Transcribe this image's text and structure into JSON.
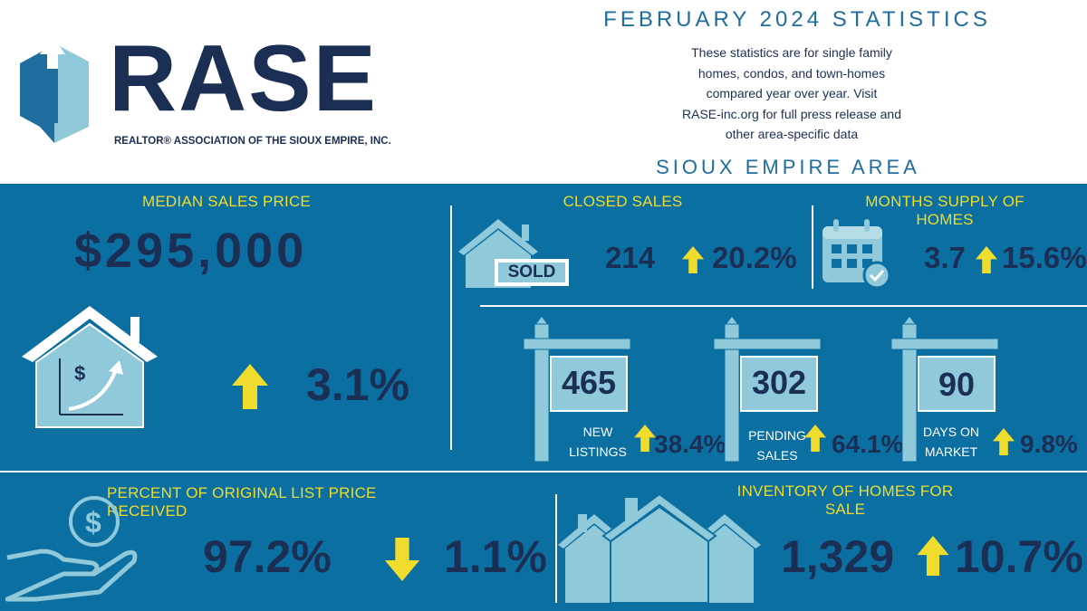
{
  "brand": {
    "logo_text": "RASE",
    "tagline": "REALTOR® ASSOCIATION OF THE SIOUX EMPIRE, INC."
  },
  "header": {
    "title": "FEBRUARY 2024 STATISTICS",
    "description_lines": [
      "These statistics are for single family",
      "homes, condos, and town-homes",
      "compared year over year. Visit",
      "RASE-inc.org for full press release and",
      "other area-specific data"
    ],
    "area": "SIOUX EMPIRE AREA"
  },
  "median": {
    "label": "MEDIAN SALES PRICE",
    "value": "$295,000",
    "change": "3.1%",
    "direction": "up"
  },
  "closed": {
    "label": "CLOSED SALES",
    "value": "214",
    "change": "20.2%",
    "direction": "up",
    "sold_sign": "SOLD"
  },
  "supply": {
    "label": "MONTHS SUPPLY OF HOMES",
    "value": "3.7",
    "change": "15.6%",
    "direction": "up"
  },
  "new_listings": {
    "value": "465",
    "caption_1": "NEW",
    "caption_2": "LISTINGS",
    "change": "38.4%",
    "direction": "up"
  },
  "pending": {
    "value": "302",
    "caption_1": "PENDING",
    "caption_2": "SALES",
    "change": "64.1%",
    "direction": "up"
  },
  "dom": {
    "value": "90",
    "caption_1": "DAYS ON",
    "caption_2": "MARKET",
    "change": "9.8%",
    "direction": "up"
  },
  "list_price": {
    "label": "PERCENT OF ORIGINAL LIST PRICE RECEIVED",
    "value": "97.2%",
    "change": "1.1%",
    "direction": "down"
  },
  "inventory": {
    "label": "INVENTORY OF HOMES FOR SALE",
    "value": "1,329",
    "change": "10.7%",
    "direction": "up"
  },
  "colors": {
    "panel": "#0c6fa2",
    "navy": "#1b2f55",
    "accent": "#f0dc2c",
    "light": "#8fc9da",
    "logo_blue": "#1f6d9e"
  },
  "icons": [
    "logo-icon",
    "house-chart-icon",
    "sold-house-icon",
    "calendar-icon",
    "sign-post-icon",
    "money-hand-icon",
    "houses-icon",
    "arrow-up-icon",
    "arrow-down-icon"
  ]
}
